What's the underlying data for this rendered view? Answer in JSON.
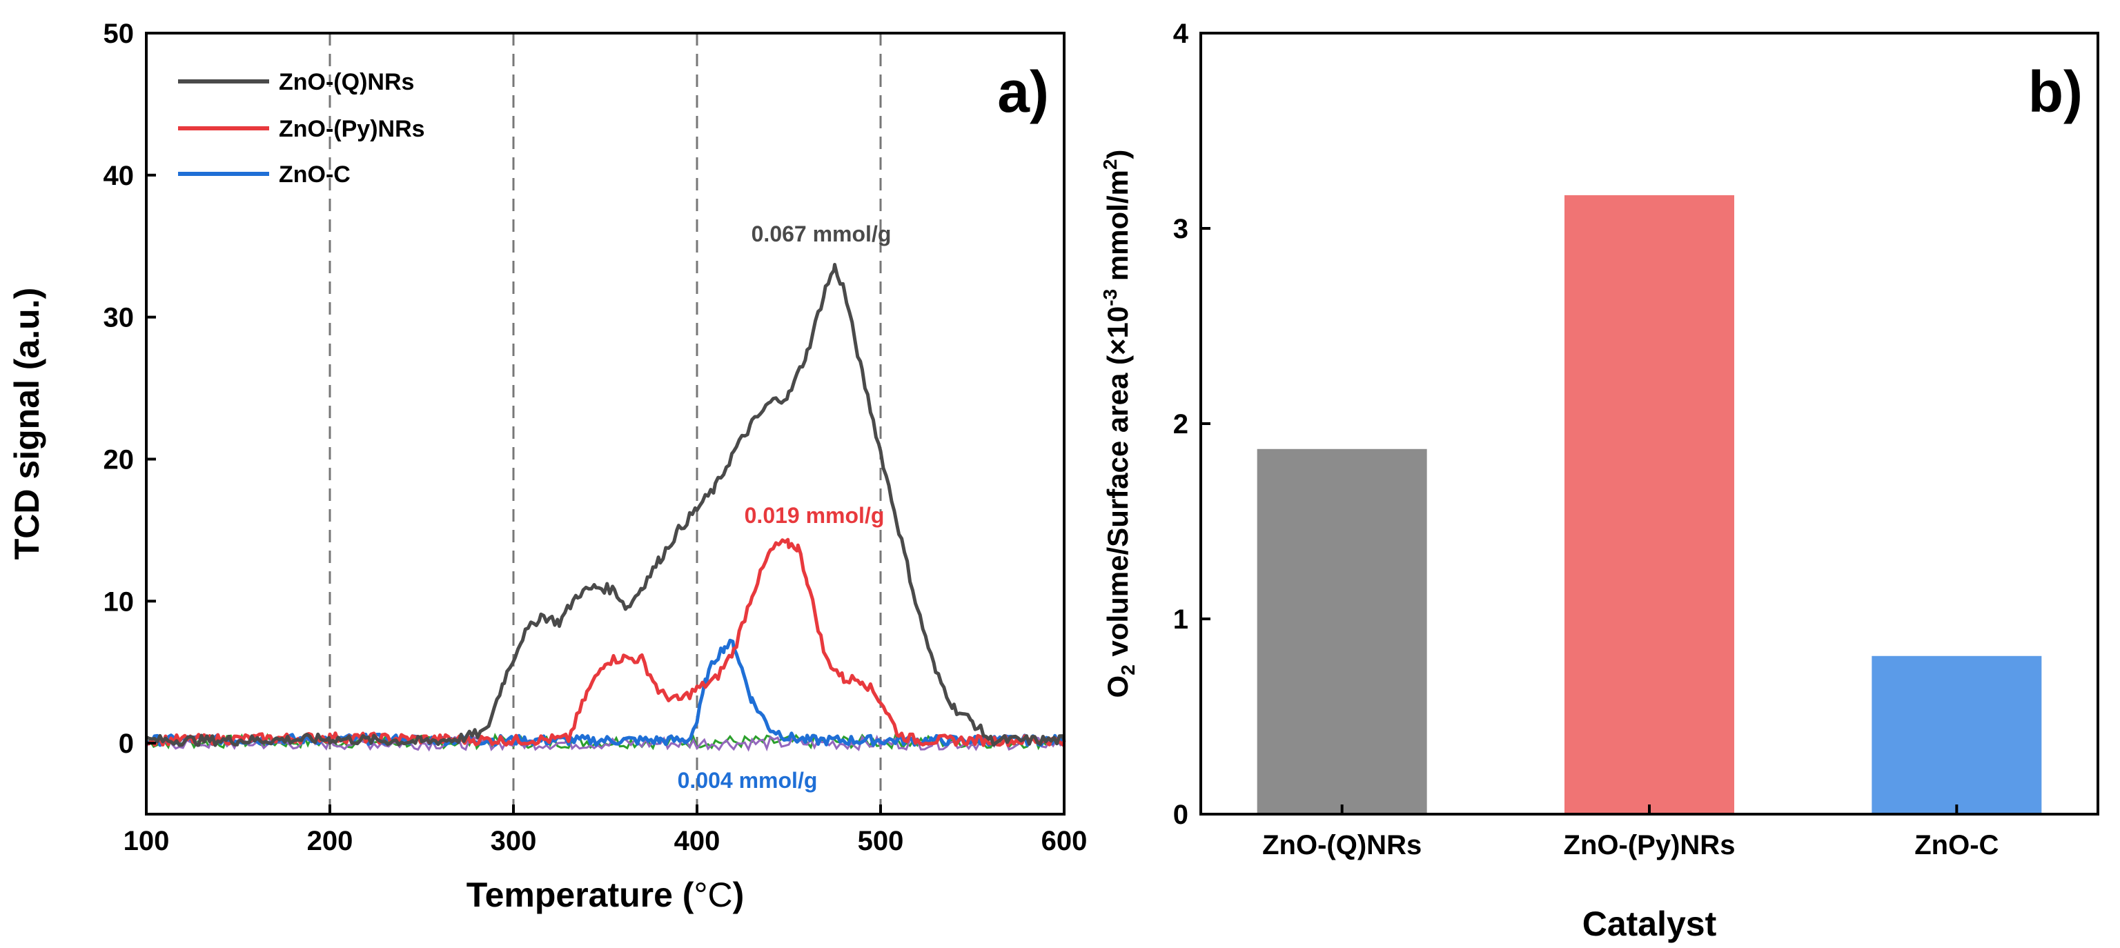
{
  "chart_data": [
    {
      "panel_label": "a)",
      "type": "line",
      "xlabel_main": "Temperature (",
      "xlabel_unit": "°C",
      "xlabel_close": ")",
      "ylabel": "TCD signal (a.u.)",
      "xlim": [
        100,
        600
      ],
      "ylim": [
        -5,
        50
      ],
      "xticks": [
        "100",
        "200",
        "300",
        "400",
        "500",
        "600"
      ],
      "yticks": [
        "0",
        "10",
        "20",
        "30",
        "40",
        "50"
      ],
      "reference_lines_x": [
        200,
        300,
        400,
        500
      ],
      "noise_series": [
        {
          "color": "#2ca02c",
          "x": [
            100,
            600
          ],
          "y": [
            0.1,
            0.1
          ]
        },
        {
          "color": "#9467bd",
          "x": [
            100,
            600
          ],
          "y": [
            0.0,
            0.0
          ]
        }
      ],
      "series": [
        {
          "name": "ZnO-(Q)NRs",
          "color": "#4a4a4a",
          "x": [
            100,
            150,
            200,
            250,
            270,
            285,
            295,
            305,
            315,
            325,
            335,
            345,
            355,
            362,
            370,
            380,
            390,
            400,
            410,
            420,
            430,
            440,
            450,
            460,
            470,
            475,
            480,
            490,
            500,
            510,
            520,
            530,
            540,
            550,
            560,
            600
          ],
          "y": [
            0.2,
            0.2,
            0.3,
            0.1,
            0.3,
            0.8,
            4.5,
            7.5,
            9.0,
            8.5,
            10.5,
            11.0,
            10.8,
            9.5,
            11.0,
            13.0,
            15.0,
            16.5,
            18.0,
            20.5,
            22.5,
            24.0,
            24.5,
            27.5,
            32.0,
            33.5,
            32.0,
            26.0,
            20.5,
            15.0,
            9.5,
            5.0,
            2.5,
            1.5,
            0.2,
            0.2
          ],
          "annotation": "0.067 mmol/g"
        },
        {
          "name": "ZnO-(Py)NRs",
          "color": "#e8393d",
          "x": [
            100,
            200,
            300,
            330,
            340,
            350,
            360,
            370,
            380,
            390,
            400,
            410,
            420,
            430,
            440,
            445,
            450,
            455,
            460,
            470,
            480,
            490,
            500,
            510,
            520,
            600
          ],
          "y": [
            0.2,
            0.4,
            0.2,
            0.3,
            3.5,
            5.8,
            6.0,
            5.9,
            3.5,
            3.0,
            3.8,
            4.5,
            6.5,
            10.5,
            13.5,
            14.0,
            14.0,
            13.8,
            11.5,
            6.0,
            4.5,
            4.5,
            3.0,
            0.6,
            0.2,
            0.2
          ],
          "annotation": "0.019 mmol/g"
        },
        {
          "name": "ZnO-C",
          "color": "#1f6fd6",
          "x": [
            100,
            200,
            300,
            380,
            395,
            400,
            405,
            410,
            415,
            420,
            425,
            430,
            440,
            450,
            460,
            600
          ],
          "y": [
            0.2,
            0.3,
            0.2,
            0.2,
            0.2,
            1.5,
            4.5,
            6.0,
            6.8,
            7.0,
            5.0,
            3.0,
            1.0,
            0.4,
            0.2,
            0.2
          ],
          "annotation": "0.004 mmol/g"
        }
      ]
    },
    {
      "panel_label": "b)",
      "type": "bar",
      "xlabel": "Catalyst",
      "ylabel_pre": "O",
      "ylabel_sub": "2",
      "ylabel_mid": " volume/Surface area (×10",
      "ylabel_sup": "-3",
      "ylabel_unit": " mmol/m",
      "ylabel_sup2": "2",
      "ylabel_close": ")",
      "ylim": [
        0,
        4
      ],
      "yticks": [
        "0",
        "1",
        "2",
        "3",
        "4"
      ],
      "categories": [
        "ZnO-(Q)NRs",
        "ZnO-(Py)NRs",
        "ZnO-C"
      ],
      "values": [
        1.87,
        3.17,
        0.81
      ],
      "colors": [
        "#8c8c8c",
        "#f07474",
        "#5b9be8"
      ]
    }
  ]
}
